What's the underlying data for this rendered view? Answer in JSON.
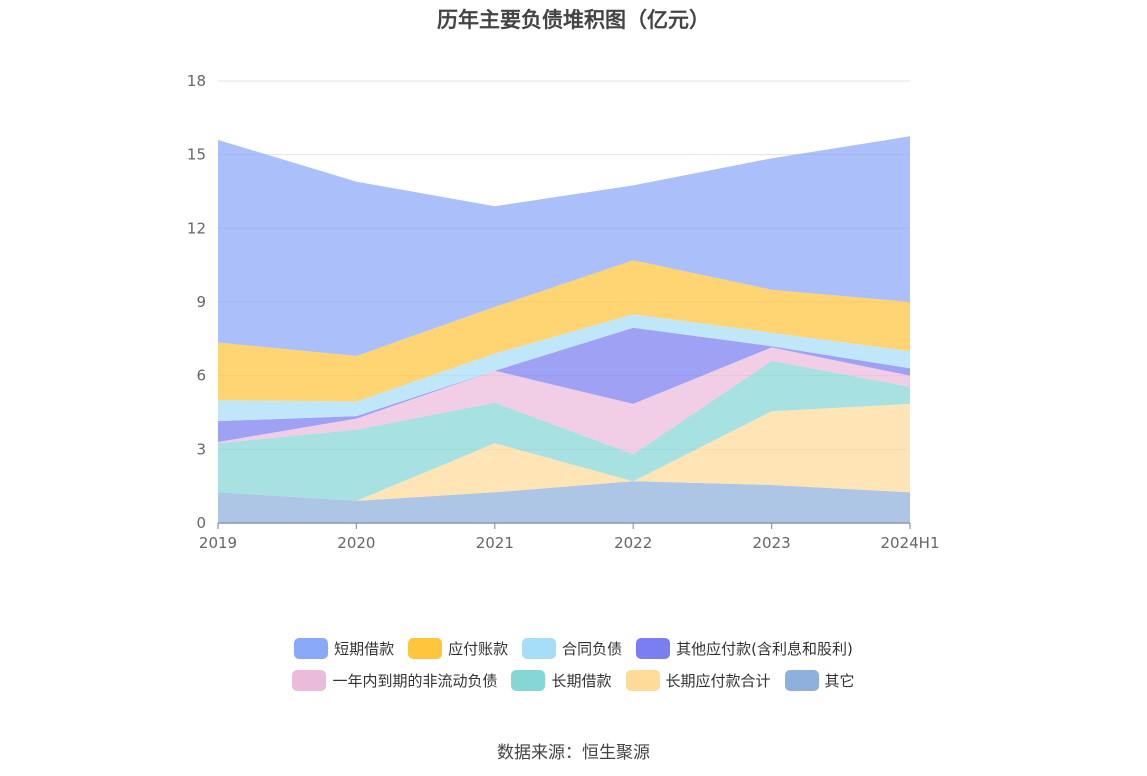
{
  "title": "历年主要负债堆积图（亿元）",
  "source": "数据来源：恒生聚源",
  "colors": {
    "短期借款": "#8aa8f8",
    "应付账款": "#ffc53d",
    "合同负债": "#a7def7",
    "其他应付款(含利息和股利)": "#7a7ef0",
    "一年内到期的非流动负债": "#ebbbdc",
    "长期借款": "#86d6d6",
    "长期应付款合计": "#ffda99",
    "其它": "#8fb0dc"
  },
  "chart_data": {
    "type": "area",
    "stacked": true,
    "x": [
      "2019",
      "2020",
      "2021",
      "2022",
      "2023",
      "2024H1"
    ],
    "ylim": [
      0,
      18
    ],
    "yticks": [
      "0",
      "3",
      "6",
      "9",
      "12",
      "15",
      "18"
    ],
    "grid": true,
    "legend_position": "bottom",
    "series": [
      {
        "name": "其它",
        "values": [
          1.25,
          0.9,
          1.25,
          1.7,
          1.55,
          1.25
        ]
      },
      {
        "name": "长期应付款合计",
        "values": [
          0,
          0,
          2.0,
          0,
          3.0,
          3.6
        ]
      },
      {
        "name": "长期借款",
        "values": [
          2.0,
          2.9,
          1.65,
          1.1,
          2.05,
          0.7
        ]
      },
      {
        "name": "一年内到期的非流动负债",
        "values": [
          0.05,
          0.45,
          1.3,
          2.05,
          0.55,
          0.45
        ]
      },
      {
        "name": "其他应付款(含利息和股利)",
        "values": [
          0.85,
          0.1,
          0,
          3.1,
          0.05,
          0.3
        ]
      },
      {
        "name": "合同负债",
        "values": [
          0.85,
          0.6,
          0.7,
          0.55,
          0.55,
          0.7
        ]
      },
      {
        "name": "应付账款",
        "values": [
          2.35,
          1.85,
          1.9,
          2.2,
          1.75,
          2.0
        ]
      },
      {
        "name": "短期借款",
        "values": [
          8.25,
          7.1,
          4.1,
          3.05,
          5.35,
          6.75
        ]
      }
    ]
  },
  "legend": {
    "row1": [
      "短期借款",
      "应付账款",
      "合同负债",
      "其他应付款(含利息和股利)"
    ],
    "row2": [
      "一年内到期的非流动负债",
      "长期借款",
      "长期应付款合计",
      "其它"
    ]
  }
}
